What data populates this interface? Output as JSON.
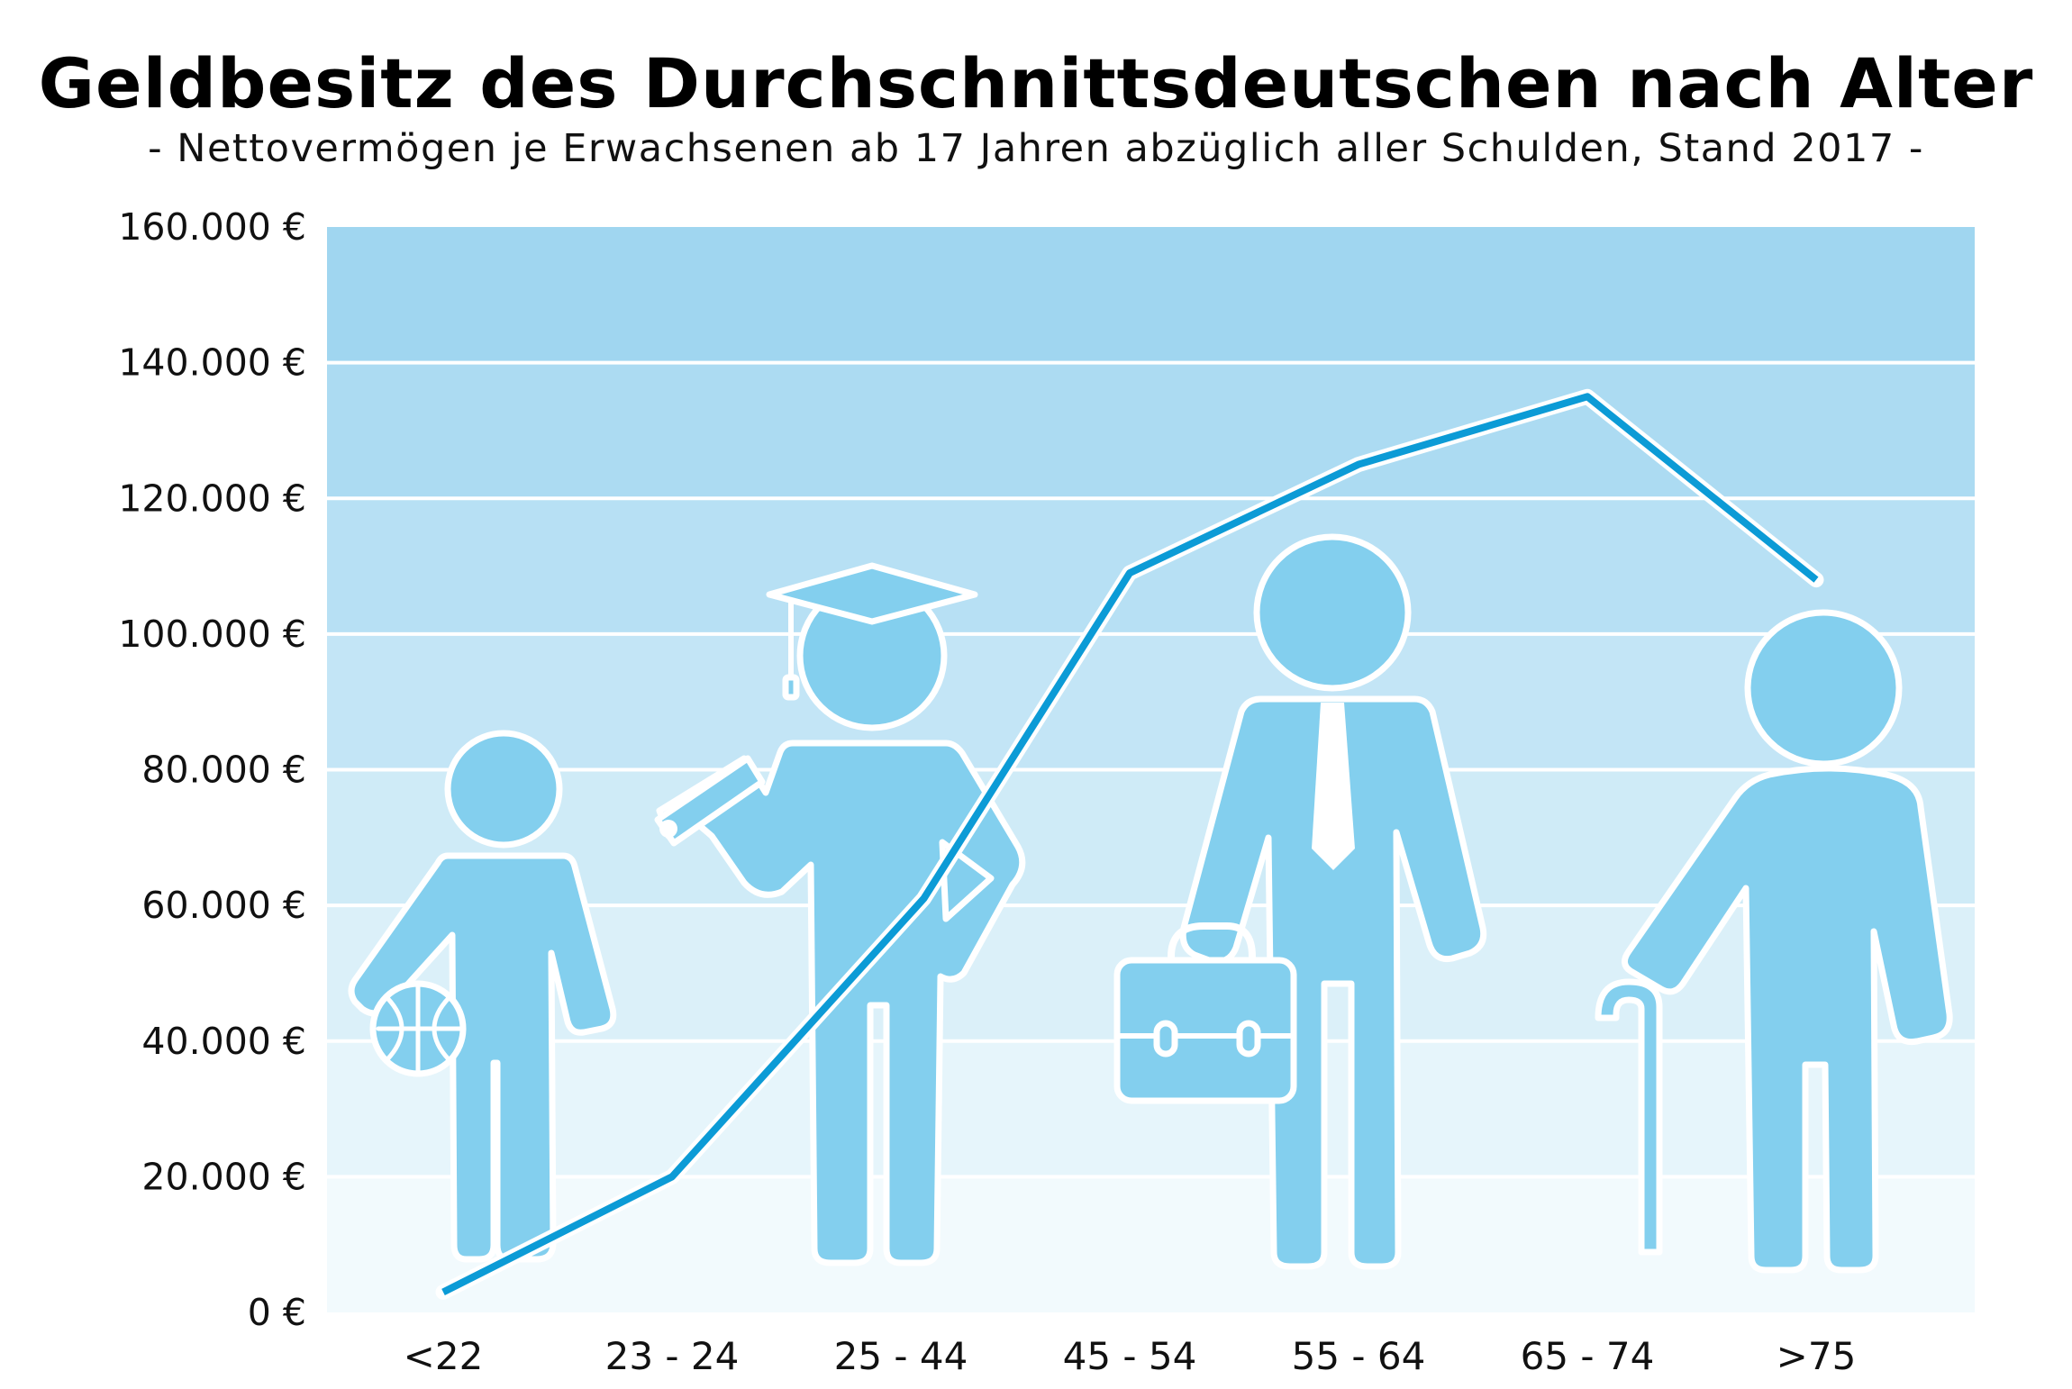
{
  "chart_data": {
    "type": "line",
    "title": "Geldbesitz des Durchschnittsdeutschen nach Alter",
    "subtitle": "- Nettovermögen je Erwachsenen ab 17 Jahren abzüglich aller Schulden, Stand 2017 -",
    "categories": [
      "<22",
      "23 - 24",
      "25 - 44",
      "45 - 54",
      "55 - 64",
      "65 - 74",
      ">75"
    ],
    "series": [
      {
        "values": [
          3000,
          20000,
          61000,
          109000,
          125000,
          135000,
          108000
        ]
      }
    ],
    "x_points": [
      0.0,
      1.0,
      2.1,
      3.0,
      4.0,
      5.0,
      6.0
    ],
    "yticks": [
      0,
      20000,
      40000,
      60000,
      80000,
      100000,
      120000,
      140000,
      160000
    ],
    "ytick_labels": [
      "0 €",
      "20.000 €",
      "40.000 €",
      "60.000 €",
      "80.000 €",
      "100.000 €",
      "120.000 €",
      "140.000 €",
      "160.000 €"
    ],
    "ylim": [
      0,
      160000
    ],
    "grid": true,
    "legend": "none",
    "colors": {
      "line": "#0c9bd6",
      "figure": "#83cfee",
      "figure_outline": "#ffffff",
      "band_light": "#f2fafd",
      "band_dark": "#a4d7f0"
    }
  },
  "illustration": {
    "figures": [
      "child-with-basketball-icon",
      "graduate-with-diploma-icon",
      "businessman-with-briefcase-icon",
      "senior-with-cane-icon"
    ]
  }
}
